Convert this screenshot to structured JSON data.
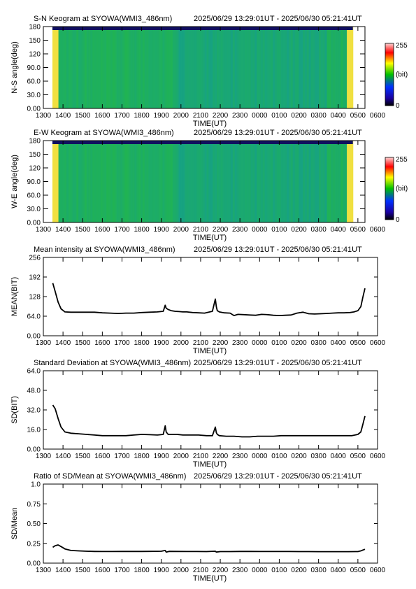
{
  "x_axis": {
    "ticks": [
      "1300",
      "1400",
      "1500",
      "1600",
      "1700",
      "1800",
      "1900",
      "2000",
      "2100",
      "2200",
      "2300",
      "0000",
      "0100",
      "0200",
      "0300",
      "0400",
      "0500",
      "0600"
    ],
    "label": "TIME(UT)"
  },
  "time_range": "2025/06/29 13:29:01UT - 2025/06/30 05:21:41UT",
  "keogram_colorbar": {
    "max": "255",
    "unit": "(bit)",
    "min": "0"
  },
  "chart_data": [
    {
      "type": "heatmap",
      "title": "S-N Keogram at SYOWA(WMI3_486nm)",
      "ylabel": "N-S angle(deg)",
      "xlabel": "TIME(UT)",
      "yticks": [
        "0.00",
        "30.0",
        "60.0",
        "90.0",
        "120",
        "150",
        "180"
      ],
      "ylim": [
        0,
        180
      ],
      "xlim_hours": [
        13.0,
        30.0
      ],
      "data_start_hour": 13.48,
      "data_end_hour": 29.36,
      "colorscale": [
        "#000000",
        "#1a00a0",
        "#0030ff",
        "#00c000",
        "#ffff00",
        "#ff0000",
        "#ffffff"
      ],
      "colorbar_range": [
        0,
        255
      ]
    },
    {
      "type": "heatmap",
      "title": "E-W Keogram at SYOWA(WMI3_486nm)",
      "ylabel": "W-E angle(deg)",
      "xlabel": "TIME(UT)",
      "yticks": [
        "0.00",
        "30.0",
        "60.0",
        "90.0",
        "120",
        "150",
        "180"
      ],
      "ylim": [
        0,
        180
      ],
      "xlim_hours": [
        13.0,
        30.0
      ],
      "data_start_hour": 13.48,
      "data_end_hour": 29.36,
      "colorscale": [
        "#000000",
        "#1a00a0",
        "#0030ff",
        "#00c000",
        "#ffff00",
        "#ff0000",
        "#ffffff"
      ],
      "colorbar_range": [
        0,
        255
      ]
    },
    {
      "type": "line",
      "title": "Mean intensity at SYOWA(WMI3_486nm)",
      "ylabel": "MEAN(BIT)",
      "xlabel": "TIME(UT)",
      "yticks": [
        "0.00",
        "64.0",
        "128",
        "192",
        "256"
      ],
      "ylim": [
        0,
        256
      ],
      "xlim_hours": [
        13.0,
        30.0
      ],
      "series": [
        {
          "x": [
            13.48,
            13.6,
            13.75,
            13.9,
            14.1,
            14.4,
            14.8,
            15.2,
            15.6,
            16.0,
            16.4,
            16.8,
            17.2,
            17.6,
            18.0,
            18.4,
            18.8,
            19.1,
            19.2,
            19.25,
            19.35,
            19.5,
            19.7,
            19.9,
            20.1,
            20.3,
            20.6,
            20.9,
            21.2,
            21.6,
            21.75,
            21.8,
            21.85,
            21.95,
            22.2,
            22.5,
            22.7,
            22.9,
            23.2,
            23.5,
            23.8,
            24.1,
            24.4,
            24.7,
            25.0,
            25.3,
            25.6,
            25.9,
            26.2,
            26.5,
            26.8,
            27.1,
            27.4,
            27.7,
            28.0,
            28.3,
            28.6,
            28.8,
            29.0,
            29.15,
            29.25,
            29.36
          ],
          "y": [
            172,
            145,
            110,
            88,
            78,
            77,
            77,
            77,
            77,
            75,
            74,
            73,
            74,
            74,
            76,
            77,
            78,
            80,
            100,
            90,
            86,
            82,
            80,
            79,
            78,
            78,
            76,
            75,
            74,
            80,
            120,
            95,
            82,
            78,
            75,
            74,
            66,
            70,
            69,
            68,
            67,
            70,
            69,
            67,
            66,
            67,
            68,
            74,
            77,
            72,
            71,
            72,
            73,
            74,
            75,
            75,
            76,
            78,
            82,
            95,
            125,
            155
          ]
        }
      ]
    },
    {
      "type": "line",
      "title": "Standard Deviation at SYOWA(WMI3_486nm)",
      "ylabel": "SD(BIT)",
      "xlabel": "TIME(UT)",
      "yticks": [
        "0.00",
        "16.0",
        "32.0",
        "48.0",
        "64.0"
      ],
      "ylim": [
        0,
        64
      ],
      "xlim_hours": [
        13.0,
        30.0
      ],
      "series": [
        {
          "x": [
            13.48,
            13.6,
            13.75,
            13.9,
            14.1,
            14.4,
            14.8,
            15.2,
            15.6,
            16.0,
            16.4,
            16.8,
            17.2,
            17.6,
            18.0,
            18.4,
            18.8,
            19.1,
            19.2,
            19.25,
            19.35,
            19.5,
            19.8,
            20.1,
            20.5,
            20.9,
            21.3,
            21.6,
            21.75,
            21.8,
            21.85,
            21.95,
            22.3,
            22.7,
            23.1,
            23.5,
            23.9,
            24.3,
            24.7,
            25.1,
            25.5,
            25.9,
            26.3,
            26.7,
            27.1,
            27.5,
            27.9,
            28.3,
            28.7,
            29.0,
            29.15,
            29.25,
            29.36
          ],
          "y": [
            36,
            33,
            25,
            18,
            14,
            13,
            12.5,
            12,
            11.5,
            11,
            11,
            11,
            11,
            11.5,
            12,
            11.8,
            11.5,
            12,
            19,
            14,
            12,
            12,
            12,
            11.5,
            11.5,
            11.5,
            11,
            11,
            18,
            13.5,
            12,
            11,
            10.5,
            10.5,
            10,
            10,
            10.5,
            10.5,
            10.5,
            11,
            11,
            11,
            11,
            11,
            11,
            11,
            11,
            11,
            11,
            12,
            14,
            20,
            27
          ]
        }
      ]
    },
    {
      "type": "line",
      "title": "Ratio of SD/Mean at SYOWA(WMI3_486nm)",
      "ylabel": "SD/Mean",
      "xlabel": "TIME(UT)",
      "yticks": [
        "0.00",
        "0.25",
        "0.50",
        "0.75",
        "1.0"
      ],
      "ylim": [
        0,
        1.0
      ],
      "xlim_hours": [
        13.0,
        30.0
      ],
      "series": [
        {
          "x": [
            13.48,
            13.6,
            13.75,
            13.9,
            14.1,
            14.4,
            14.8,
            15.2,
            15.6,
            16.0,
            16.5,
            17.0,
            17.5,
            18.0,
            18.5,
            19.0,
            19.2,
            19.25,
            19.4,
            19.8,
            20.3,
            20.8,
            21.3,
            21.75,
            21.8,
            22.0,
            22.5,
            23.0,
            23.5,
            24.0,
            24.5,
            25.0,
            25.5,
            26.0,
            26.5,
            27.0,
            27.5,
            28.0,
            28.5,
            29.0,
            29.15,
            29.25,
            29.36
          ],
          "y": [
            0.2,
            0.22,
            0.23,
            0.21,
            0.18,
            0.16,
            0.155,
            0.15,
            0.148,
            0.147,
            0.147,
            0.148,
            0.148,
            0.148,
            0.149,
            0.15,
            0.16,
            0.14,
            0.149,
            0.148,
            0.147,
            0.147,
            0.146,
            0.15,
            0.14,
            0.146,
            0.146,
            0.148,
            0.148,
            0.147,
            0.147,
            0.147,
            0.147,
            0.146,
            0.146,
            0.145,
            0.145,
            0.145,
            0.145,
            0.146,
            0.155,
            0.165,
            0.175
          ]
        }
      ]
    }
  ]
}
